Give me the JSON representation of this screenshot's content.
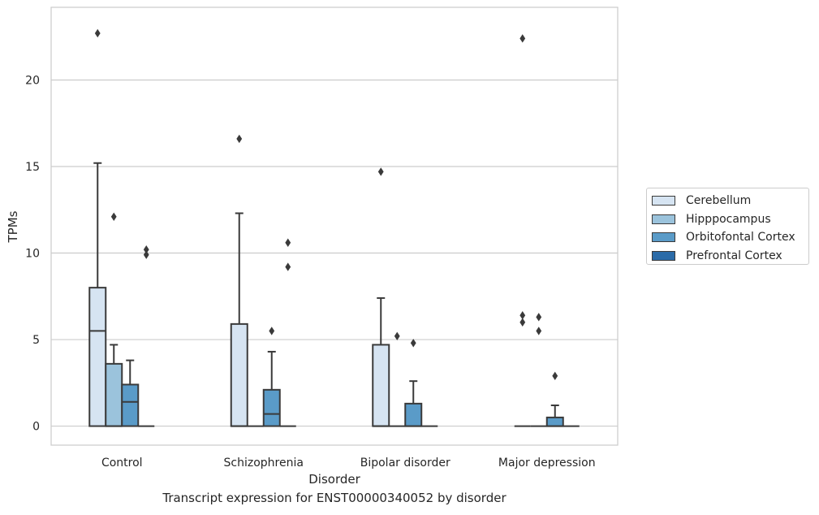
{
  "caption": "Transcript expression for ENST00000340052 by disorder",
  "chart_data": {
    "type": "box",
    "xlabel": "Disorder",
    "ylabel": "TPMs",
    "ylim": [
      -1.1,
      24.2
    ],
    "yticks": [
      0,
      5,
      10,
      15,
      20
    ],
    "grid": true,
    "legend_position": "right",
    "categories": [
      "Control",
      "Schizophrenia",
      "Bipolar disorder",
      "Major depression"
    ],
    "series": [
      {
        "name": "Cerebellum",
        "color": "#d6e4f2",
        "boxes": [
          {
            "q1": 0,
            "median": 5.5,
            "q3": 8.0,
            "whisker_low": 0,
            "whisker_high": 15.2,
            "outliers": [
              22.7
            ]
          },
          {
            "q1": 0,
            "median": 0,
            "q3": 5.9,
            "whisker_low": 0,
            "whisker_high": 12.3,
            "outliers": [
              16.6
            ]
          },
          {
            "q1": 0,
            "median": 0,
            "q3": 4.7,
            "whisker_low": 0,
            "whisker_high": 7.4,
            "outliers": [
              14.7
            ]
          },
          {
            "q1": 0,
            "median": 0,
            "q3": 0,
            "whisker_low": 0,
            "whisker_high": 0,
            "outliers": [
              22.4,
              6.4,
              6.0
            ]
          }
        ]
      },
      {
        "name": "Hipppocampus",
        "color": "#9bc3dc",
        "boxes": [
          {
            "q1": 0,
            "median": 0,
            "q3": 3.6,
            "whisker_low": 0,
            "whisker_high": 4.7,
            "outliers": [
              12.1
            ]
          },
          {
            "q1": 0,
            "median": 0,
            "q3": 0,
            "whisker_low": 0,
            "whisker_high": 0,
            "outliers": []
          },
          {
            "q1": 0,
            "median": 0,
            "q3": 0,
            "whisker_low": 0,
            "whisker_high": 0,
            "outliers": [
              5.2
            ]
          },
          {
            "q1": 0,
            "median": 0,
            "q3": 0,
            "whisker_low": 0,
            "whisker_high": 0,
            "outliers": [
              6.3,
              5.5
            ]
          }
        ]
      },
      {
        "name": "Orbitofontal Cortex",
        "color": "#5a9bc8",
        "boxes": [
          {
            "q1": 0,
            "median": 1.4,
            "q3": 2.4,
            "whisker_low": 0,
            "whisker_high": 3.8,
            "outliers": []
          },
          {
            "q1": 0,
            "median": 0.7,
            "q3": 2.1,
            "whisker_low": 0,
            "whisker_high": 4.3,
            "outliers": [
              5.5
            ]
          },
          {
            "q1": 0,
            "median": 0,
            "q3": 1.3,
            "whisker_low": 0,
            "whisker_high": 2.6,
            "outliers": [
              4.8
            ]
          },
          {
            "q1": 0,
            "median": 0,
            "q3": 0.5,
            "whisker_low": 0,
            "whisker_high": 1.2,
            "outliers": [
              2.9
            ]
          }
        ]
      },
      {
        "name": "Prefrontal Cortex",
        "color": "#2b6ba8",
        "boxes": [
          {
            "q1": 0,
            "median": 0,
            "q3": 0,
            "whisker_low": 0,
            "whisker_high": 0,
            "outliers": [
              10.2,
              9.9
            ]
          },
          {
            "q1": 0,
            "median": 0,
            "q3": 0,
            "whisker_low": 0,
            "whisker_high": 0,
            "outliers": [
              10.6,
              9.2
            ]
          },
          {
            "q1": 0,
            "median": 0,
            "q3": 0,
            "whisker_low": 0,
            "whisker_high": 0,
            "outliers": []
          },
          {
            "q1": 0,
            "median": 0,
            "q3": 0,
            "whisker_low": 0,
            "whisker_high": 0,
            "outliers": []
          }
        ]
      }
    ]
  }
}
